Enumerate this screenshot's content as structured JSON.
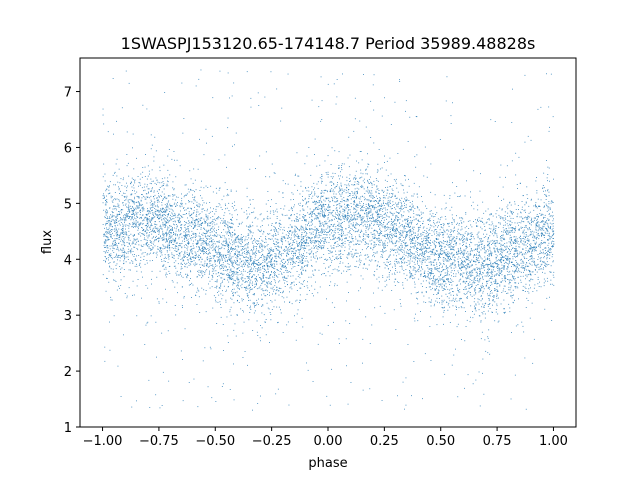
{
  "chart_data": {
    "type": "scatter",
    "title": "1SWASPJ153120.65-174148.7 Period 35989.48828s",
    "xlabel": "phase",
    "ylabel": "flux",
    "xlim": [
      -1.1,
      1.1
    ],
    "ylim": [
      1.0,
      7.6
    ],
    "x_ticks": [
      -1.0,
      -0.75,
      -0.5,
      -0.25,
      0.0,
      0.25,
      0.5,
      0.75,
      1.0
    ],
    "x_tick_labels": [
      "−1.00",
      "−0.75",
      "−0.50",
      "−0.25",
      "0.00",
      "0.25",
      "0.50",
      "0.75",
      "1.00"
    ],
    "y_ticks": [
      1,
      2,
      3,
      4,
      5,
      6,
      7
    ],
    "y_tick_labels": [
      "1",
      "2",
      "3",
      "4",
      "5",
      "6",
      "7"
    ],
    "grid": false,
    "point_color": "#1f77b4",
    "series": [
      {
        "x_range": [
          -1.0,
          1.0
        ],
        "mean_flux_curve": {
          "phase": [
            -1.0,
            -0.8,
            -0.6,
            -0.4,
            -0.3,
            -0.2,
            0.0,
            0.15,
            0.3,
            0.5,
            0.7,
            0.85,
            1.0
          ],
          "flux": [
            4.5,
            4.7,
            4.4,
            4.0,
            3.9,
            4.1,
            4.7,
            4.8,
            4.5,
            4.0,
            3.9,
            4.2,
            4.5
          ]
        },
        "core_spread": 0.45,
        "outlier_range": [
          1.3,
          7.4
        ]
      }
    ]
  }
}
